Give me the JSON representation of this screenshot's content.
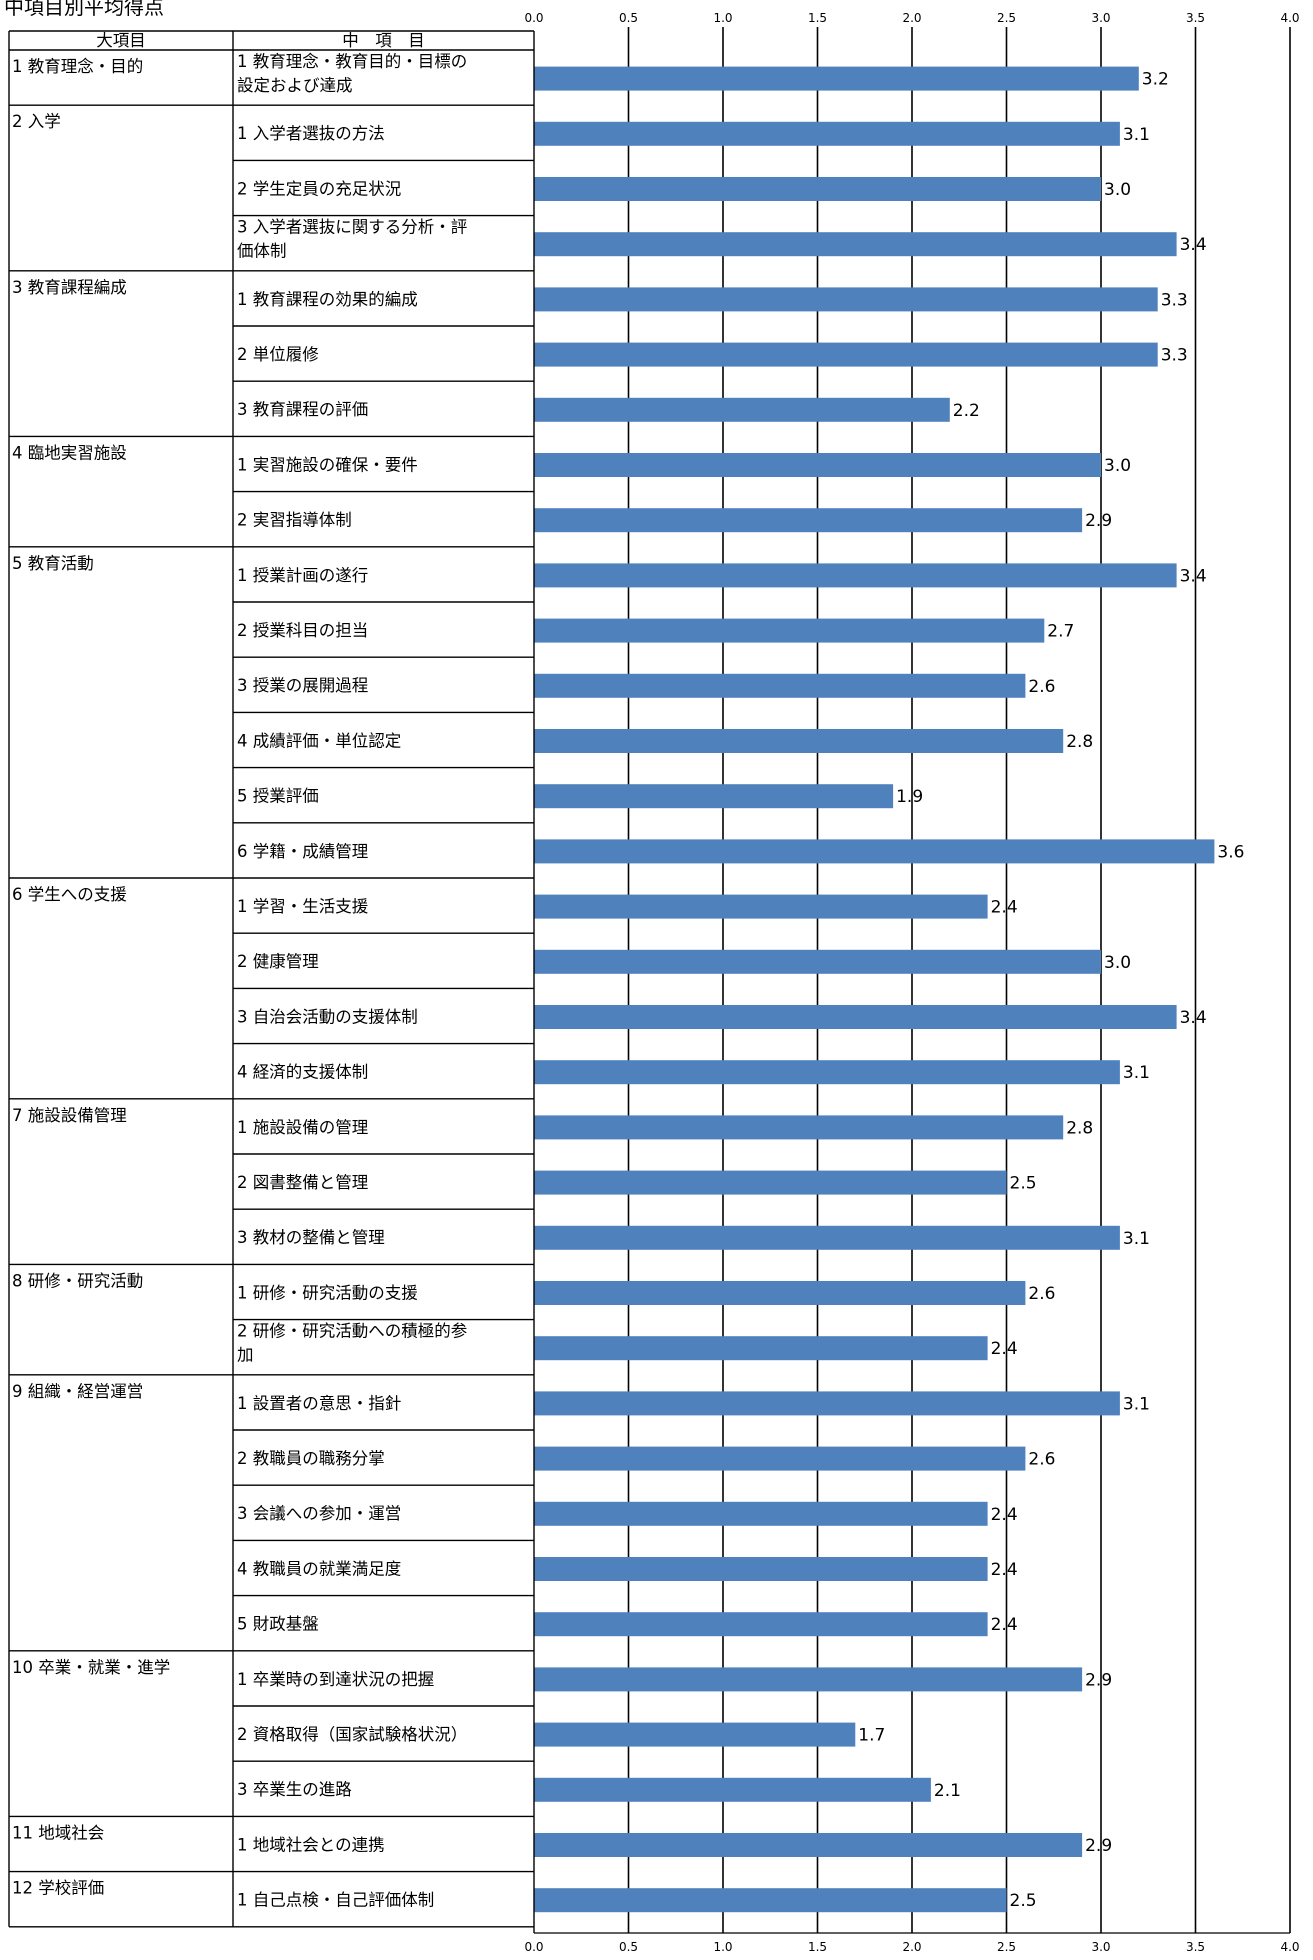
{
  "title": "中項目別平均得点",
  "table_headers": {
    "major": "大項目",
    "middle": "中　項　目"
  },
  "chart_data": {
    "type": "bar",
    "orientation": "horizontal",
    "xlim": [
      0,
      4.0
    ],
    "xticks": [
      "0.0",
      "0.5",
      "1.0",
      "1.5",
      "2.0",
      "2.5",
      "3.0",
      "3.5",
      "4.0"
    ],
    "bar_color": "#4f81bd",
    "grid": true,
    "groups": [
      {
        "label": "1 教育理念・目的",
        "items": [
          {
            "label": [
              "1 教育理念・教育目的・目標の",
              "設定および達成"
            ],
            "value": 3.2,
            "value_label": "3.2"
          }
        ]
      },
      {
        "label": "2 入学",
        "items": [
          {
            "label": [
              "1 入学者選抜の方法"
            ],
            "value": 3.1,
            "value_label": "3.1"
          },
          {
            "label": [
              "2 学生定員の充足状況"
            ],
            "value": 3.0,
            "value_label": "3.0"
          },
          {
            "label": [
              "3 入学者選抜に関する分析・評",
              "価体制"
            ],
            "value": 3.4,
            "value_label": "3.4"
          }
        ]
      },
      {
        "label": "3 教育課程編成",
        "items": [
          {
            "label": [
              "1 教育課程の効果的編成"
            ],
            "value": 3.3,
            "value_label": "3.3"
          },
          {
            "label": [
              "2 単位履修"
            ],
            "value": 3.3,
            "value_label": "3.3"
          },
          {
            "label": [
              "3 教育課程の評価"
            ],
            "value": 2.2,
            "value_label": "2.2"
          }
        ]
      },
      {
        "label": "4 臨地実習施設",
        "items": [
          {
            "label": [
              "1 実習施設の確保・要件"
            ],
            "value": 3.0,
            "value_label": "3.0"
          },
          {
            "label": [
              "2 実習指導体制"
            ],
            "value": 2.9,
            "value_label": "2.9"
          }
        ]
      },
      {
        "label": "5 教育活動",
        "items": [
          {
            "label": [
              "1 授業計画の遂行"
            ],
            "value": 3.4,
            "value_label": "3.4"
          },
          {
            "label": [
              "2 授業科目の担当"
            ],
            "value": 2.7,
            "value_label": "2.7"
          },
          {
            "label": [
              "3 授業の展開過程"
            ],
            "value": 2.6,
            "value_label": "2.6"
          },
          {
            "label": [
              "4 成績評価・単位認定"
            ],
            "value": 2.8,
            "value_label": "2.8"
          },
          {
            "label": [
              "5 授業評価"
            ],
            "value": 1.9,
            "value_label": "1.9"
          },
          {
            "label": [
              "6 学籍・成績管理"
            ],
            "value": 3.6,
            "value_label": "3.6"
          }
        ]
      },
      {
        "label": "6 学生への支援",
        "items": [
          {
            "label": [
              "1 学習・生活支援"
            ],
            "value": 2.4,
            "value_label": "2.4"
          },
          {
            "label": [
              "2 健康管理"
            ],
            "value": 3.0,
            "value_label": "3.0"
          },
          {
            "label": [
              "3 自治会活動の支援体制"
            ],
            "value": 3.4,
            "value_label": "3.4"
          },
          {
            "label": [
              "4 経済的支援体制"
            ],
            "value": 3.1,
            "value_label": "3.1"
          }
        ]
      },
      {
        "label": "7 施設設備管理",
        "items": [
          {
            "label": [
              "1 施設設備の管理"
            ],
            "value": 2.8,
            "value_label": "2.8"
          },
          {
            "label": [
              "2 図書整備と管理"
            ],
            "value": 2.5,
            "value_label": "2.5"
          },
          {
            "label": [
              "3 教材の整備と管理"
            ],
            "value": 3.1,
            "value_label": "3.1"
          }
        ]
      },
      {
        "label": "8 研修・研究活動",
        "items": [
          {
            "label": [
              "1 研修・研究活動の支援"
            ],
            "value": 2.6,
            "value_label": "2.6"
          },
          {
            "label": [
              "2 研修・研究活動への積極的参",
              "加"
            ],
            "value": 2.4,
            "value_label": "2.4"
          }
        ]
      },
      {
        "label": "9 組織・経営運営",
        "items": [
          {
            "label": [
              "1 設置者の意思・指針"
            ],
            "value": 3.1,
            "value_label": "3.1"
          },
          {
            "label": [
              "2 教職員の職務分掌"
            ],
            "value": 2.6,
            "value_label": "2.6"
          },
          {
            "label": [
              "3 会議への参加・運営"
            ],
            "value": 2.4,
            "value_label": "2.4"
          },
          {
            "label": [
              "4 教職員の就業満足度"
            ],
            "value": 2.4,
            "value_label": "2.4"
          },
          {
            "label": [
              "5 財政基盤"
            ],
            "value": 2.4,
            "value_label": "2.4"
          }
        ]
      },
      {
        "label": "10 卒業・就業・進学",
        "items": [
          {
            "label": [
              "1 卒業時の到達状況の把握"
            ],
            "value": 2.9,
            "value_label": "2.9"
          },
          {
            "label": [
              "2 資格取得（国家試験格状況）"
            ],
            "value": 1.7,
            "value_label": "1.7"
          },
          {
            "label": [
              "3 卒業生の進路"
            ],
            "value": 2.1,
            "value_label": "2.1"
          }
        ]
      },
      {
        "label": "11 地域社会",
        "items": [
          {
            "label": [
              "1 地域社会との連携"
            ],
            "value": 2.9,
            "value_label": "2.9"
          }
        ]
      },
      {
        "label": "12 学校評価",
        "items": [
          {
            "label": [
              "1 自己点検・自己評価体制"
            ],
            "value": 2.5,
            "value_label": "2.5"
          }
        ]
      }
    ]
  }
}
